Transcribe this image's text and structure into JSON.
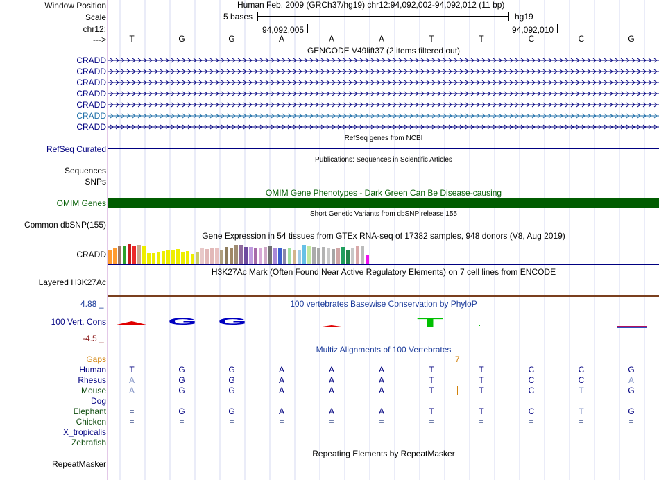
{
  "header": {
    "window_position_label": "Window Position",
    "scale_label": "Scale",
    "chrom_label": "chr12:",
    "arrow_label": "--->",
    "position_title": "Human Feb. 2009 (GRCh37/hg19)   chr12:94,092,002-94,092,012 (11 bp)",
    "scale_text": "5 bases",
    "assembly": "hg19",
    "tick1": "94,092,005",
    "tick2": "94,092,010",
    "bases": [
      "T",
      "G",
      "G",
      "A",
      "A",
      "A",
      "T",
      "T",
      "C",
      "C",
      "G"
    ]
  },
  "gencode": {
    "title": "GENCODE V49lift37 (2 items filtered out)",
    "items": [
      "CRADD",
      "CRADD",
      "CRADD",
      "CRADD",
      "CRADD",
      "CRADD",
      "CRADD"
    ]
  },
  "refseq": {
    "label": "RefSeq Curated",
    "title": "RefSeq genes from NCBI"
  },
  "publications": {
    "label": "Sequences",
    "title": "Publications: Sequences in Scientific Articles"
  },
  "snps": {
    "label": "SNPs"
  },
  "omim": {
    "label": "OMIM Genes",
    "title": "OMIM Gene Phenotypes - Dark Green Can Be Disease-causing"
  },
  "dbsnp": {
    "label": "Common dbSNP(155)",
    "title": "Short Genetic Variants from dbSNP release 155"
  },
  "gtex": {
    "label": "CRADD",
    "title": "Gene Expression in 54 tissues from GTEx RNA-seq of 17382 samples, 948 donors (V8, Aug 2019)",
    "heights": [
      20,
      22,
      26,
      26,
      28,
      25,
      27,
      25,
      15,
      15,
      16,
      18,
      19,
      20,
      21,
      16,
      18,
      14,
      17,
      22,
      21,
      23,
      22,
      20,
      24,
      23,
      27,
      27,
      24,
      24,
      23,
      23,
      24,
      25,
      22,
      22,
      21,
      22,
      20,
      20,
      27,
      26,
      24,
      23,
      24,
      22,
      21,
      22,
      24,
      20,
      23,
      25,
      26,
      12
    ],
    "colors": [
      "#ff9a2e",
      "#ff9a2e",
      "#9a7866",
      "#2ca02c",
      "#c51b1b",
      "#ec2a2a",
      "#c8a990",
      "#eeee00",
      "#eeee00",
      "#eeee00",
      "#eeee00",
      "#eeee00",
      "#eeee00",
      "#eeee00",
      "#eeee00",
      "#eeee00",
      "#eeee00",
      "#eeee00",
      "#cccc66",
      "#e8c8c8",
      "#e2b8b8",
      "#e2b8b8",
      "#e8c0c0",
      "#b0a080",
      "#8f7d5e",
      "#a08866",
      "#9f8c72",
      "#8e6a9e",
      "#6e4a9e",
      "#c09ce0",
      "#a66aa8",
      "#d8a8d8",
      "#cfa8c8",
      "#707070",
      "#aa88d8",
      "#3c5fcf",
      "#8888aa",
      "#9fdf9f",
      "#d2b48c",
      "#9ecbe6",
      "#67c1e6",
      "#c2e8a0",
      "#ababab",
      "#aaaaaa",
      "#b3b3b3",
      "#c8c8c8",
      "#a6a6a6",
      "#cfa5a5",
      "#1f9e5e",
      "#20844a",
      "#c8c8c8",
      "#d8a8a8",
      "#bbbbbb",
      "#ee11ee"
    ]
  },
  "h3k27ac": {
    "label": "Layered H3K27Ac",
    "title": "H3K27Ac Mark (Often Found Near Active Regulatory Elements) on 7 cell lines from ENCODE"
  },
  "phylop": {
    "label": "100 Vert. Cons",
    "title": "100 vertebrates Basewise Conservation by PhyloP",
    "max": "4.88 _",
    "min": "-4.5 _"
  },
  "multiz": {
    "title": "Multiz Alignments of 100 Vertebrates",
    "gaps_label": "Gaps",
    "gap_count": "7",
    "species": [
      {
        "name": "Human",
        "bases": [
          "T",
          "G",
          "G",
          "A",
          "A",
          "A",
          "T",
          "T",
          "C",
          "C",
          "G"
        ]
      },
      {
        "name": "Rhesus",
        "bases": [
          "A",
          "G",
          "G",
          "A",
          "A",
          "A",
          "T",
          "T",
          "C",
          "C",
          "A"
        ]
      },
      {
        "name": "Mouse",
        "bases": [
          "A",
          "G",
          "G",
          "A",
          "A",
          "A",
          "T",
          "T",
          "C",
          "T",
          "G"
        ]
      },
      {
        "name": "Dog",
        "bases": [
          "=",
          "=",
          "=",
          "=",
          "=",
          "=",
          "=",
          "=",
          "=",
          "=",
          "="
        ]
      },
      {
        "name": "Elephant",
        "bases": [
          "=",
          "G",
          "G",
          "A",
          "A",
          "A",
          "T",
          "T",
          "C",
          "T",
          "G"
        ]
      },
      {
        "name": "Chicken",
        "bases": [
          "=",
          "=",
          "=",
          "=",
          "=",
          "=",
          "=",
          "=",
          "=",
          "=",
          "="
        ]
      },
      {
        "name": "X_tropicalis",
        "bases": []
      },
      {
        "name": "Zebrafish",
        "bases": []
      }
    ]
  },
  "repeatmasker": {
    "label": "RepeatMasker",
    "title": "Repeating Elements by RepeatMasker"
  },
  "colors": {
    "navy": "#000080",
    "omim_green": "#005c00",
    "gaps_orange": "#d2820a",
    "species_green": "#0f4d0f",
    "cradd_highlight": "#1f6fa8"
  }
}
